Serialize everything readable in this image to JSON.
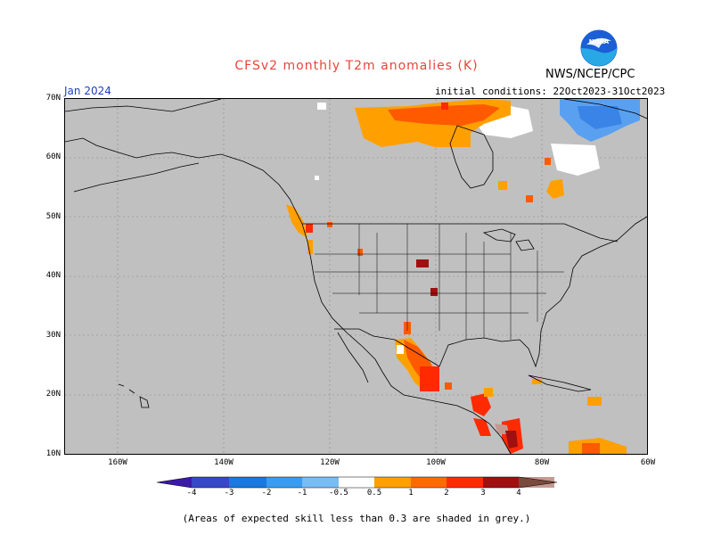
{
  "title": "CFSv2 monthly T2m anomalies (K)",
  "organization": "NWS/NCEP/CPC",
  "logo_text": "NOAA",
  "valid_month": "Jan 2024",
  "initial_conditions": "initial conditions: 22Oct2023-31Oct2023",
  "footnote": "(Areas of expected skill less than 0.3 are shaded in grey.)",
  "map": {
    "region": "North America",
    "lat_range": [
      10,
      70
    ],
    "lon_range": [
      -170,
      -60
    ],
    "lat_labels": [
      "70N",
      "60N",
      "50N",
      "40N",
      "30N",
      "20N",
      "10N"
    ],
    "lon_labels": [
      "160W",
      "140W",
      "120W",
      "100W",
      "80W",
      "60W"
    ],
    "background_color": "#c0c0c0"
  },
  "colorbar": {
    "labels": [
      "-4",
      "-3",
      "-2",
      "-1",
      "-0.5",
      "0.5",
      "1",
      "2",
      "3",
      "4"
    ],
    "colors": [
      "#3c1aa8",
      "#3548c8",
      "#1a78e0",
      "#3a9cf0",
      "#78bcf5",
      "#ffffff",
      "#ffa000",
      "#ff6a00",
      "#ff2a00",
      "#a01010",
      "#c49a90",
      "#7a4a3c"
    ]
  }
}
